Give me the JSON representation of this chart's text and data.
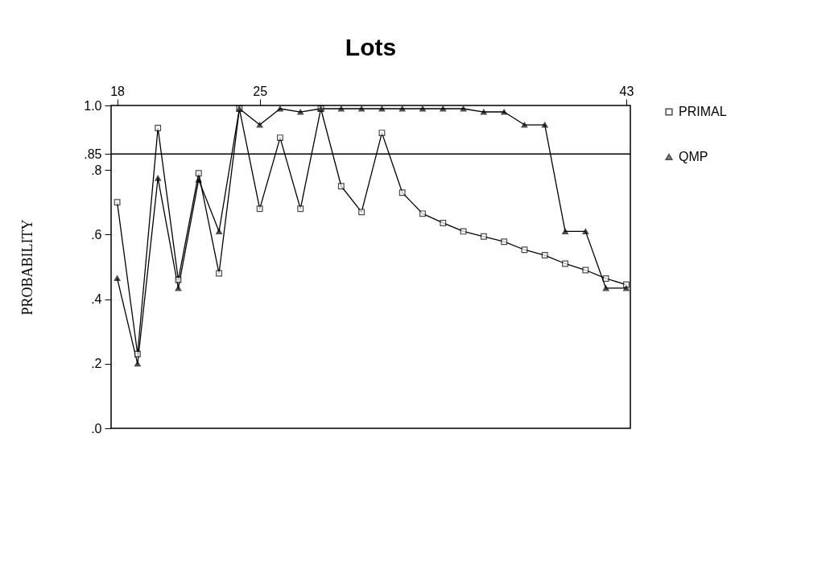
{
  "chart_data": {
    "type": "line",
    "title": "Lots",
    "ylabel": "PROBABILITY",
    "x": [
      18,
      19,
      20,
      21,
      22,
      23,
      24,
      25,
      26,
      27,
      28,
      29,
      30,
      31,
      32,
      33,
      34,
      35,
      36,
      37,
      38,
      39,
      40,
      41,
      42,
      43
    ],
    "xlim": [
      17.7,
      43.2
    ],
    "xticks": [
      18,
      25,
      43
    ],
    "ylim": [
      0,
      1
    ],
    "yticks": [
      {
        "value": 1,
        "label": "1.0"
      },
      {
        "value": 0.85,
        "label": ".85"
      },
      {
        "value": 0.8,
        "label": ".8"
      },
      {
        "value": 0.6,
        "label": ".6"
      },
      {
        "value": 0.4,
        "label": ".4"
      },
      {
        "value": 0.2,
        "label": ".2"
      },
      {
        "value": 0,
        "label": ".0"
      }
    ],
    "ref_lines": [
      {
        "axis": "y",
        "value": 0.85,
        "color": "#000000"
      }
    ],
    "legend": "right",
    "grid": false,
    "series": [
      {
        "name": "PRIMAL",
        "color": "#000000",
        "marker": "square",
        "values": [
          0.7,
          0.23,
          0.93,
          0.46,
          0.79,
          0.48,
          0.99,
          0.68,
          0.9,
          0.68,
          0.99,
          0.75,
          0.67,
          0.915,
          0.73,
          0.665,
          0.636,
          0.61,
          0.594,
          0.578,
          0.553,
          0.536,
          0.51,
          0.49,
          0.464,
          0.445
        ]
      },
      {
        "name": "QMP",
        "color": "#000000",
        "marker": "triangle",
        "values": [
          0.465,
          0.2,
          0.775,
          0.434,
          0.77,
          0.61,
          0.99,
          0.94,
          0.99,
          0.98,
          0.99,
          0.99,
          0.99,
          0.99,
          0.99,
          0.99,
          0.99,
          0.99,
          0.98,
          0.98,
          0.94,
          0.94,
          0.61,
          0.61,
          0.434,
          0.434
        ]
      }
    ]
  }
}
